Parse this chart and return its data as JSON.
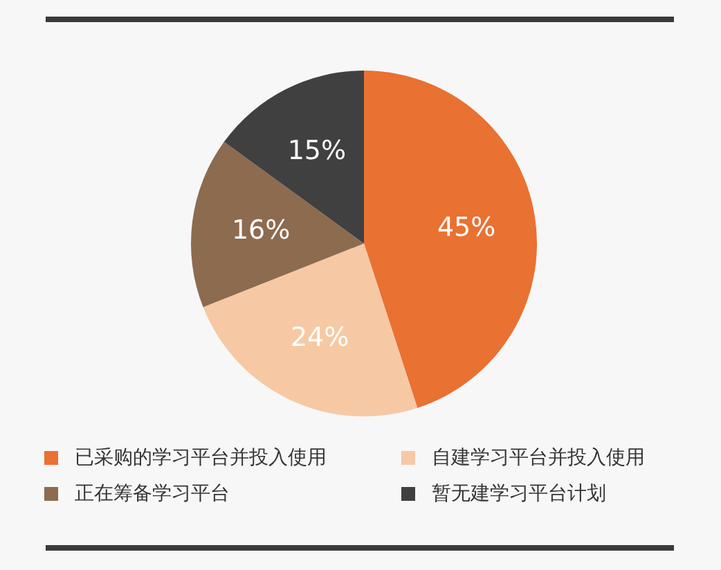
{
  "chart_data": {
    "type": "pie",
    "categories": [
      "已采购的学习平台并投入使用",
      "自建学习平台并投入使用",
      "正在筹备学习平台",
      "暂无建学习平台计划"
    ],
    "values": [
      45,
      24,
      16,
      15
    ],
    "colors": [
      "#e97132",
      "#f6c9a4",
      "#8c6b4f",
      "#404040"
    ],
    "value_labels": [
      "45%",
      "24%",
      "16%",
      "15%"
    ],
    "legend": "bottom"
  }
}
